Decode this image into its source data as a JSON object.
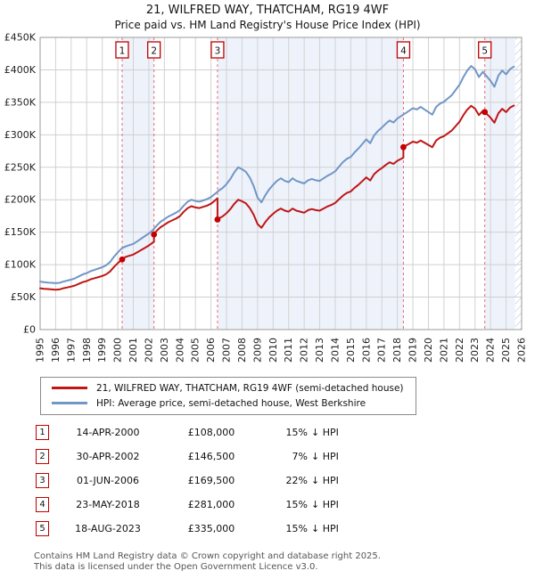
{
  "title": "21, WILFRED WAY, THATCHAM, RG19 4WF",
  "subtitle": "Price paid vs. HM Land Registry's House Price Index (HPI)",
  "chart_data": {
    "type": "line",
    "x_range": [
      1995,
      2026
    ],
    "y_range_gbp_thousands": [
      0,
      450
    ],
    "grid": true,
    "y_ticks": [
      {
        "v": 0,
        "label": "£0"
      },
      {
        "v": 50,
        "label": "£50K"
      },
      {
        "v": 100,
        "label": "£100K"
      },
      {
        "v": 150,
        "label": "£150K"
      },
      {
        "v": 200,
        "label": "£200K"
      },
      {
        "v": 250,
        "label": "£250K"
      },
      {
        "v": 300,
        "label": "£300K"
      },
      {
        "v": 350,
        "label": "£350K"
      },
      {
        "v": 400,
        "label": "£400K"
      },
      {
        "v": 450,
        "label": "£450K"
      }
    ],
    "x_ticks": [
      "1995",
      "1996",
      "1997",
      "1998",
      "1999",
      "2000",
      "2001",
      "2002",
      "2003",
      "2004",
      "2005",
      "2006",
      "2007",
      "2008",
      "2009",
      "2010",
      "2011",
      "2012",
      "2013",
      "2014",
      "2015",
      "2016",
      "2017",
      "2018",
      "2019",
      "2020",
      "2021",
      "2022",
      "2023",
      "2024",
      "2025",
      "2026"
    ],
    "band_color": "#eef2fb",
    "dashed_line_color": "#ee6a6a",
    "shaded_bands": [
      [
        2000.28,
        2002.33
      ],
      [
        2006.42,
        2018.39
      ],
      [
        2023.63,
        2025.58
      ]
    ],
    "hatch_band": [
      2025.58,
      2026
    ],
    "series": [
      {
        "name": "property",
        "color": "#bf1616",
        "points": [
          [
            1995,
            63.6
          ],
          [
            1995.25,
            62.8
          ],
          [
            1995.5,
            62.4
          ],
          [
            1995.75,
            61.9
          ],
          [
            1996,
            61.5
          ],
          [
            1996.25,
            61.9
          ],
          [
            1996.5,
            63.6
          ],
          [
            1996.75,
            64.9
          ],
          [
            1997,
            66.2
          ],
          [
            1997.25,
            67.9
          ],
          [
            1997.5,
            70.5
          ],
          [
            1997.75,
            73.1
          ],
          [
            1998,
            74.8
          ],
          [
            1998.25,
            77.4
          ],
          [
            1998.5,
            79.1
          ],
          [
            1998.75,
            80.8
          ],
          [
            1999,
            82.6
          ],
          [
            1999.25,
            85.1
          ],
          [
            1999.5,
            89.4
          ],
          [
            1999.75,
            96.3
          ],
          [
            2000,
            102.3
          ],
          [
            2000.25,
            107.5
          ],
          [
            2000.28,
            108
          ],
          [
            2000.5,
            112
          ],
          [
            2000.75,
            113.8
          ],
          [
            2001,
            115.5
          ],
          [
            2001.25,
            119
          ],
          [
            2001.5,
            122.5
          ],
          [
            2001.75,
            126
          ],
          [
            2002,
            129.5
          ],
          [
            2002.25,
            133.9
          ],
          [
            2002.33,
            135.6
          ],
          [
            2002.33,
            146.5
          ],
          [
            2002.5,
            152
          ],
          [
            2002.75,
            157.7
          ],
          [
            2003,
            161.5
          ],
          [
            2003.25,
            165.3
          ],
          [
            2003.5,
            168.2
          ],
          [
            2003.75,
            171
          ],
          [
            2004,
            174.8
          ],
          [
            2004.25,
            181.5
          ],
          [
            2004.5,
            187.2
          ],
          [
            2004.75,
            190
          ],
          [
            2005,
            188.1
          ],
          [
            2005.25,
            187.2
          ],
          [
            2005.5,
            189.1
          ],
          [
            2005.75,
            191
          ],
          [
            2006,
            193.8
          ],
          [
            2006.25,
            198.6
          ],
          [
            2006.42,
            202.4
          ],
          [
            2006.42,
            169.5
          ],
          [
            2006.5,
            171.2
          ],
          [
            2006.75,
            174.4
          ],
          [
            2007,
            179.2
          ],
          [
            2007.25,
            185.6
          ],
          [
            2007.5,
            193.6
          ],
          [
            2007.75,
            200
          ],
          [
            2008,
            197.6
          ],
          [
            2008.25,
            194.4
          ],
          [
            2008.5,
            187.2
          ],
          [
            2008.75,
            176.8
          ],
          [
            2009,
            162.4
          ],
          [
            2009.25,
            156.8
          ],
          [
            2009.5,
            165.6
          ],
          [
            2009.75,
            172.8
          ],
          [
            2010,
            178.4
          ],
          [
            2010.25,
            183.2
          ],
          [
            2010.5,
            186.4
          ],
          [
            2010.75,
            183.2
          ],
          [
            2011,
            181.6
          ],
          [
            2011.25,
            186.4
          ],
          [
            2011.5,
            183.2
          ],
          [
            2011.75,
            181.6
          ],
          [
            2012,
            180
          ],
          [
            2012.25,
            184
          ],
          [
            2012.5,
            185.6
          ],
          [
            2012.75,
            184
          ],
          [
            2013,
            183.2
          ],
          [
            2013.25,
            186.4
          ],
          [
            2013.5,
            189.6
          ],
          [
            2013.75,
            192
          ],
          [
            2014,
            195.2
          ],
          [
            2014.25,
            200.8
          ],
          [
            2014.5,
            206.4
          ],
          [
            2014.75,
            210.4
          ],
          [
            2015,
            212.8
          ],
          [
            2015.25,
            218.4
          ],
          [
            2015.5,
            223.2
          ],
          [
            2015.75,
            228.8
          ],
          [
            2016,
            234.4
          ],
          [
            2016.25,
            229.6
          ],
          [
            2016.5,
            239.2
          ],
          [
            2016.75,
            244.8
          ],
          [
            2017,
            248.8
          ],
          [
            2017.25,
            253.6
          ],
          [
            2017.5,
            257.6
          ],
          [
            2017.75,
            255.2
          ],
          [
            2018,
            260
          ],
          [
            2018.25,
            263.2
          ],
          [
            2018.39,
            264.8
          ],
          [
            2018.39,
            281
          ],
          [
            2018.5,
            282.7
          ],
          [
            2018.75,
            286.1
          ],
          [
            2019,
            289.5
          ],
          [
            2019.25,
            287.8
          ],
          [
            2019.5,
            291.2
          ],
          [
            2019.75,
            287.8
          ],
          [
            2020,
            284.4
          ],
          [
            2020.25,
            281
          ],
          [
            2020.5,
            291.2
          ],
          [
            2020.75,
            295.5
          ],
          [
            2021,
            298
          ],
          [
            2021.25,
            302.2
          ],
          [
            2021.5,
            306.5
          ],
          [
            2021.75,
            313.3
          ],
          [
            2022,
            320.1
          ],
          [
            2022.25,
            330.3
          ],
          [
            2022.5,
            338.8
          ],
          [
            2022.75,
            344.7
          ],
          [
            2023,
            340.4
          ],
          [
            2023.25,
            330.3
          ],
          [
            2023.5,
            337
          ],
          [
            2023.63,
            335
          ],
          [
            2023.75,
            332.3
          ],
          [
            2024,
            326.3
          ],
          [
            2024.25,
            318.7
          ],
          [
            2024.5,
            333.1
          ],
          [
            2024.75,
            340
          ],
          [
            2025,
            334.9
          ],
          [
            2025.25,
            341.7
          ],
          [
            2025.5,
            345.1
          ]
        ]
      },
      {
        "name": "hpi",
        "color": "#7097c7",
        "points": [
          [
            1995,
            74
          ],
          [
            1995.25,
            73
          ],
          [
            1995.5,
            72.5
          ],
          [
            1995.75,
            72
          ],
          [
            1996,
            71.5
          ],
          [
            1996.25,
            72
          ],
          [
            1996.5,
            74
          ],
          [
            1996.75,
            75.5
          ],
          [
            1997,
            77
          ],
          [
            1997.25,
            79
          ],
          [
            1997.5,
            82
          ],
          [
            1997.75,
            85
          ],
          [
            1998,
            87
          ],
          [
            1998.25,
            90
          ],
          [
            1998.5,
            92
          ],
          [
            1998.75,
            94
          ],
          [
            1999,
            96
          ],
          [
            1999.25,
            99
          ],
          [
            1999.5,
            104
          ],
          [
            1999.75,
            112
          ],
          [
            2000,
            119
          ],
          [
            2000.25,
            125
          ],
          [
            2000.5,
            128
          ],
          [
            2000.75,
            130
          ],
          [
            2001,
            132
          ],
          [
            2001.25,
            136
          ],
          [
            2001.5,
            140
          ],
          [
            2001.75,
            144
          ],
          [
            2002,
            148
          ],
          [
            2002.25,
            153
          ],
          [
            2002.5,
            160
          ],
          [
            2002.75,
            166
          ],
          [
            2003,
            170
          ],
          [
            2003.25,
            174
          ],
          [
            2003.5,
            177
          ],
          [
            2003.75,
            180
          ],
          [
            2004,
            184
          ],
          [
            2004.25,
            191
          ],
          [
            2004.5,
            197
          ],
          [
            2004.75,
            200
          ],
          [
            2005,
            198
          ],
          [
            2005.25,
            197
          ],
          [
            2005.5,
            199
          ],
          [
            2005.75,
            201
          ],
          [
            2006,
            204
          ],
          [
            2006.25,
            209
          ],
          [
            2006.5,
            214
          ],
          [
            2006.75,
            218
          ],
          [
            2007,
            224
          ],
          [
            2007.25,
            232
          ],
          [
            2007.5,
            242
          ],
          [
            2007.75,
            250
          ],
          [
            2008,
            247
          ],
          [
            2008.25,
            243
          ],
          [
            2008.5,
            234
          ],
          [
            2008.75,
            221
          ],
          [
            2009,
            203
          ],
          [
            2009.25,
            196
          ],
          [
            2009.5,
            207
          ],
          [
            2009.75,
            216
          ],
          [
            2010,
            223
          ],
          [
            2010.25,
            229
          ],
          [
            2010.5,
            233
          ],
          [
            2010.75,
            229
          ],
          [
            2011,
            227
          ],
          [
            2011.25,
            233
          ],
          [
            2011.5,
            229
          ],
          [
            2011.75,
            227
          ],
          [
            2012,
            225
          ],
          [
            2012.25,
            230
          ],
          [
            2012.5,
            232
          ],
          [
            2012.75,
            230
          ],
          [
            2013,
            229
          ],
          [
            2013.25,
            233
          ],
          [
            2013.5,
            237
          ],
          [
            2013.75,
            240
          ],
          [
            2014,
            244
          ],
          [
            2014.25,
            251
          ],
          [
            2014.5,
            258
          ],
          [
            2014.75,
            263
          ],
          [
            2015,
            266
          ],
          [
            2015.25,
            273
          ],
          [
            2015.5,
            279
          ],
          [
            2015.75,
            286
          ],
          [
            2016,
            293
          ],
          [
            2016.25,
            287
          ],
          [
            2016.5,
            299
          ],
          [
            2016.75,
            306
          ],
          [
            2017,
            311
          ],
          [
            2017.25,
            317
          ],
          [
            2017.5,
            322
          ],
          [
            2017.75,
            319
          ],
          [
            2018,
            325
          ],
          [
            2018.25,
            329
          ],
          [
            2018.5,
            333
          ],
          [
            2018.75,
            337
          ],
          [
            2019,
            341
          ],
          [
            2019.25,
            339
          ],
          [
            2019.5,
            343
          ],
          [
            2019.75,
            339
          ],
          [
            2020,
            335
          ],
          [
            2020.25,
            331
          ],
          [
            2020.5,
            343
          ],
          [
            2020.75,
            348
          ],
          [
            2021,
            351
          ],
          [
            2021.25,
            356
          ],
          [
            2021.5,
            361
          ],
          [
            2021.75,
            369
          ],
          [
            2022,
            377
          ],
          [
            2022.25,
            389
          ],
          [
            2022.5,
            399
          ],
          [
            2022.75,
            406
          ],
          [
            2023,
            401
          ],
          [
            2023.25,
            389
          ],
          [
            2023.5,
            397
          ],
          [
            2023.75,
            390
          ],
          [
            2024,
            383
          ],
          [
            2024.25,
            374
          ],
          [
            2024.5,
            391
          ],
          [
            2024.75,
            399
          ],
          [
            2025,
            393
          ],
          [
            2025.25,
            401
          ],
          [
            2025.5,
            405
          ]
        ]
      }
    ],
    "sales": [
      {
        "n": "1",
        "year": 2000.28,
        "price_k": 108,
        "date": "14-APR-2000",
        "price_label": "£108,000",
        "pct": "15%",
        "hpi_note": "↓ HPI"
      },
      {
        "n": "2",
        "year": 2002.33,
        "price_k": 146.5,
        "date": "30-APR-2002",
        "price_label": "£146,500",
        "pct": "7%",
        "hpi_note": "↓ HPI"
      },
      {
        "n": "3",
        "year": 2006.42,
        "price_k": 169.5,
        "date": "01-JUN-2006",
        "price_label": "£169,500",
        "pct": "22%",
        "hpi_note": "↓ HPI"
      },
      {
        "n": "4",
        "year": 2018.39,
        "price_k": 281,
        "date": "23-MAY-2018",
        "price_label": "£281,000",
        "pct": "15%",
        "hpi_note": "↓ HPI"
      },
      {
        "n": "5",
        "year": 2023.63,
        "price_k": 335,
        "date": "18-AUG-2023",
        "price_label": "£335,000",
        "pct": "15%",
        "hpi_note": "↓ HPI"
      }
    ]
  },
  "legend": {
    "items": [
      {
        "label": "21, WILFRED WAY, THATCHAM, RG19 4WF (semi-detached house)",
        "color": "#bf1616"
      },
      {
        "label": "HPI: Average price, semi-detached house, West Berkshire",
        "color": "#7097c7"
      }
    ]
  },
  "footer": {
    "line1": "Contains HM Land Registry data © Crown copyright and database right 2025.",
    "line2": "This data is licensed under the Open Government Licence v3.0."
  }
}
